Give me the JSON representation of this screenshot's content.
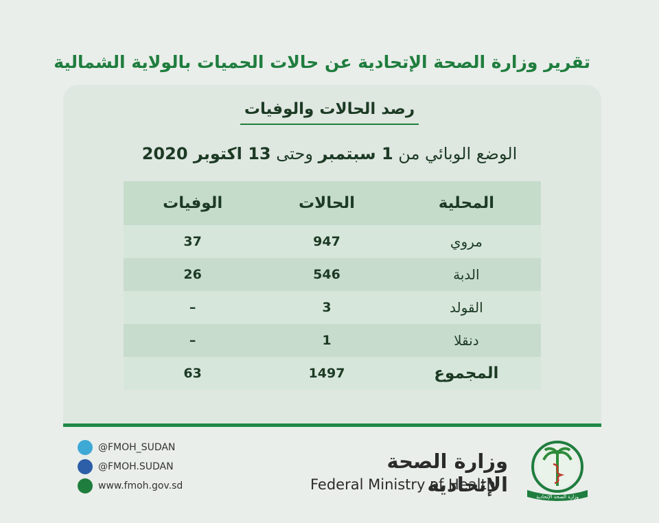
{
  "header": {
    "title": "تقرير وزارة الصحة الإتحادية عن حالات الحميات بالولاية الشمالية",
    "subtitle": "رصد الحالات والوفيات",
    "period": [
      "الوضع الوبائي من",
      "1 سبتمبر",
      "وحتى",
      "13 اكتوبر 2020"
    ]
  },
  "table": {
    "columns": [
      "المحلية",
      "الحالات",
      "الوفيات"
    ],
    "rows": [
      [
        "مروي",
        947,
        37
      ],
      [
        "الدبة",
        546,
        26
      ],
      [
        "القولد",
        3,
        "–"
      ],
      [
        "دنقلا",
        1,
        "–"
      ],
      [
        "المجموع",
        1497,
        63
      ]
    ]
  },
  "footer": {
    "twitter": "@FMOH_SUDAN",
    "facebook": "@FMOH.SUDAN",
    "website": "www.fmoh.gov.sd",
    "ministry_ar": "وزارة الصحة الإتحادية",
    "ministry_en": "Federal Ministry of Health",
    "logo_label": "وزارة الصحة الإتحادية"
  }
}
